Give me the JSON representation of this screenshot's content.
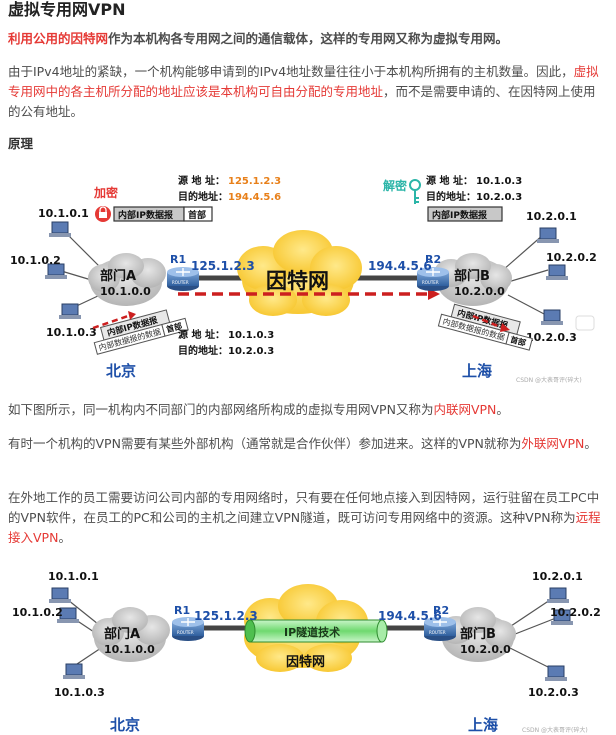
{
  "title": "虚拟专用网VPN",
  "intro": {
    "red": "利用公用的因特网",
    "rest": "作为本机构各专用网之间的通信载体，这样的专用网又称为虚拟专用网。"
  },
  "para1": {
    "a": "由于IPv4地址的紧缺，一个机构能够申请到的IPv4地址数量往往小于本机构所拥有的主机数量。因此，",
    "red": "虚拟专用网中的各主机所分配的地址应该是本机构可自由分配的专用地址",
    "b": "，而不是需要申请的、在因特网上使用的公有地址。"
  },
  "principle_heading": "原理",
  "fig1": {
    "encrypt_label": "加密",
    "decrypt_label": "解密",
    "src_label": "源 地 址：",
    "dst_label": "目的地址：",
    "top_left_src": "125.1.2.3",
    "top_left_dst": "194.4.5.6",
    "top_right_src": "10.1.0.3",
    "top_right_dst": "10.2.0.3",
    "bottom_src": "10.1.0.3",
    "bottom_dst": "10.2.0.3",
    "packet_inner": "内部IP数据报",
    "packet_header": "首部",
    "packet_data": "内部数据报的数据",
    "hostA1": "10.1.0.1",
    "hostA2": "10.1.0.2",
    "hostA3": "10.1.0.3",
    "hostB1": "10.2.0.1",
    "hostB2": "10.2.0.2",
    "hostB3": "10.2.0.3",
    "deptA": "部门A",
    "deptA_net": "10.1.0.0",
    "deptB": "部门B",
    "deptB_net": "10.2.0.0",
    "r1": "R1",
    "r2": "R2",
    "r1_ip": "125.1.2.3",
    "r2_ip": "194.4.5.6",
    "internet": "因特网",
    "beijing": "北京",
    "shanghai": "上海",
    "router_text": "ROUTER",
    "watermark": "CSDN @大表哥评(碎大)"
  },
  "para2": {
    "a": "如下图所示，同一机构内不同部门的内部网络所构成的虚拟专用网VPN又称为",
    "link": "内联网VPN",
    "b": "。"
  },
  "para3": {
    "a": "有时一个机构的VPN需要有某些外部机构（通常就是合作伙伴）参加进来。这样的VPN就称为",
    "link": "外联网VPN",
    "b": "。"
  },
  "para4": {
    "a": "在外地工作的员工需要访问公司内部的专用网络时，只有要在任何地点接入到因特网，运行驻留在员工PC中的VPN软件，在员工的PC和公司的主机之间建立VPN隧道，既可访问专用网络中的资源。这种VPN称为",
    "link": "远程接入VPN",
    "b": "。"
  },
  "fig2": {
    "hostA1": "10.1.0.1",
    "hostA2": "10.1.0.2",
    "hostA3": "10.1.0.3",
    "hostB1": "10.2.0.1",
    "hostB2": "10.2.0.2",
    "hostB3": "10.2.0.3",
    "deptA": "部门A",
    "deptA_net": "10.1.0.0",
    "deptB": "部门B",
    "deptB_net": "10.2.0.0",
    "r1": "R1",
    "r2": "R2",
    "r1_ip": "125.1.2.3",
    "r2_ip": "194.4.5.6",
    "tunnel": "IP隧道技术",
    "internet": "因特网",
    "beijing": "北京",
    "shanghai": "上海",
    "router_text": "ROUTER",
    "watermark": "CSDN @大表哥评(碎大)"
  }
}
